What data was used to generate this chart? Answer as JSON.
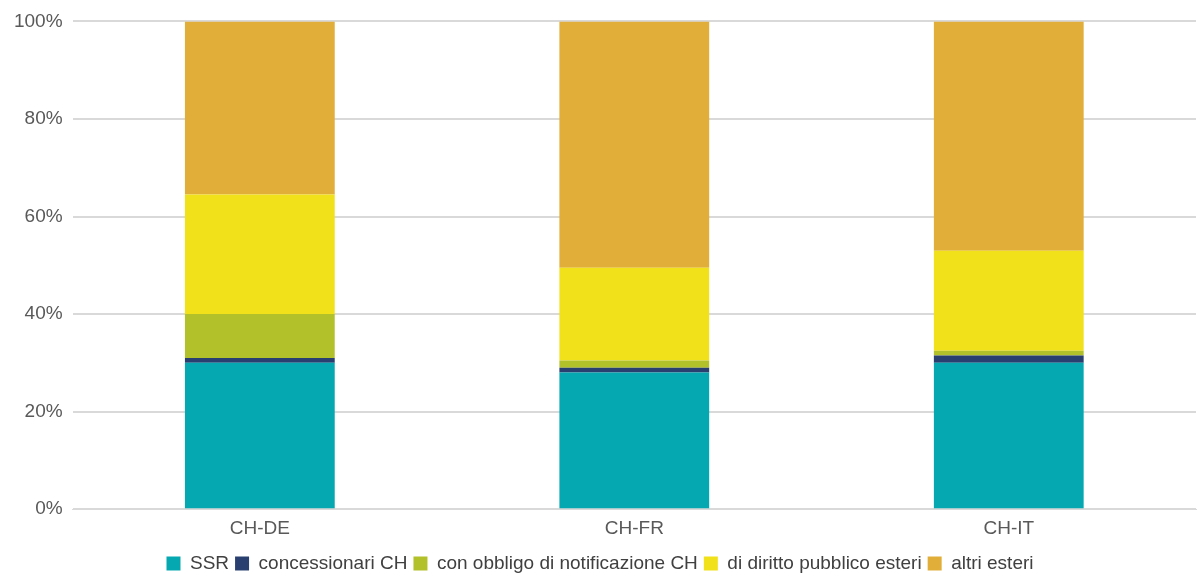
{
  "chart_data": {
    "type": "bar",
    "stacked": true,
    "categories": [
      "CH-DE",
      "CH-FR",
      "CH-IT"
    ],
    "series": [
      {
        "name": "SSR",
        "color": "#05a8b0",
        "values": [
          30,
          28,
          30
        ]
      },
      {
        "name": "concessionari CH",
        "color": "#283f70",
        "values": [
          1,
          1,
          1.5
        ]
      },
      {
        "name": "con obbligo di notificazione CH",
        "color": "#b2c02a",
        "values": [
          9,
          1.5,
          1
        ]
      },
      {
        "name": "di diritto pubblico esteri",
        "color": "#f1e11a",
        "values": [
          24.5,
          19,
          20.5
        ]
      },
      {
        "name": "altri esteri",
        "color": "#e1ae3a",
        "values": [
          35.5,
          50.5,
          47
        ]
      }
    ],
    "ylim": [
      0,
      100
    ],
    "yticks": [
      {
        "value": 0,
        "label": "0%"
      },
      {
        "value": 20,
        "label": "20%"
      },
      {
        "value": 40,
        "label": "40%"
      },
      {
        "value": 60,
        "label": "60%"
      },
      {
        "value": 80,
        "label": "80%"
      },
      {
        "value": 100,
        "label": "100%"
      }
    ],
    "grid": "y",
    "legend": "bottom"
  }
}
